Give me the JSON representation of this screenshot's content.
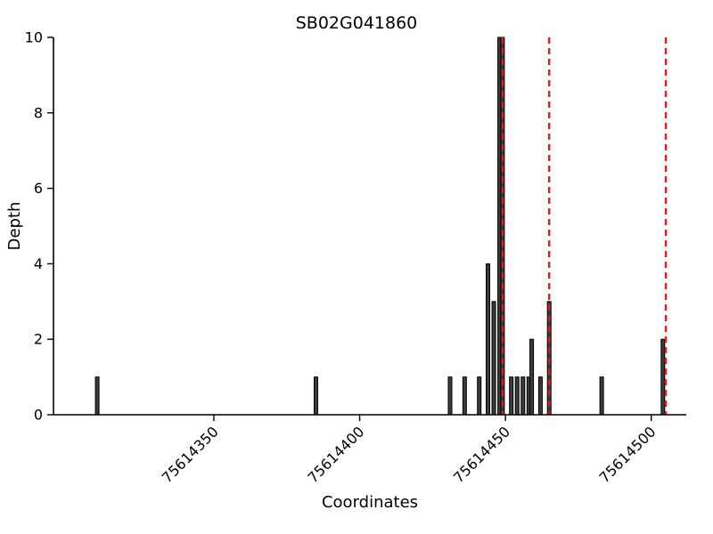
{
  "chart_data": {
    "type": "bar",
    "title": "SB02G041860",
    "xlabel": "Coordinates",
    "ylabel": "Depth",
    "xlim": [
      75614295,
      75614512
    ],
    "ylim": [
      0,
      10
    ],
    "xticks": [
      75614350,
      75614400,
      75614450,
      75614500
    ],
    "yticks": [
      0,
      2,
      4,
      6,
      8,
      10
    ],
    "grid": false,
    "legend_position": "none",
    "bar_color": "#3b3b3b",
    "bar_edge_color": "#000000",
    "bars": [
      {
        "x": 75614310,
        "depth": 1
      },
      {
        "x": 75614385,
        "depth": 1
      },
      {
        "x": 75614431,
        "depth": 1
      },
      {
        "x": 75614436,
        "depth": 1
      },
      {
        "x": 75614441,
        "depth": 1
      },
      {
        "x": 75614444,
        "depth": 4
      },
      {
        "x": 75614446,
        "depth": 3
      },
      {
        "x": 75614448,
        "depth": 10
      },
      {
        "x": 75614449,
        "depth": 10
      },
      {
        "x": 75614452,
        "depth": 1
      },
      {
        "x": 75614454,
        "depth": 1
      },
      {
        "x": 75614456,
        "depth": 1
      },
      {
        "x": 75614458,
        "depth": 1
      },
      {
        "x": 75614459,
        "depth": 2
      },
      {
        "x": 75614462,
        "depth": 1
      },
      {
        "x": 75614465,
        "depth": 3
      },
      {
        "x": 75614483,
        "depth": 1
      },
      {
        "x": 75614504,
        "depth": 2
      }
    ],
    "marker_lines": {
      "color": "#e51c1c",
      "style": "dashed",
      "x": [
        75614449,
        75614465,
        75614505
      ]
    }
  }
}
